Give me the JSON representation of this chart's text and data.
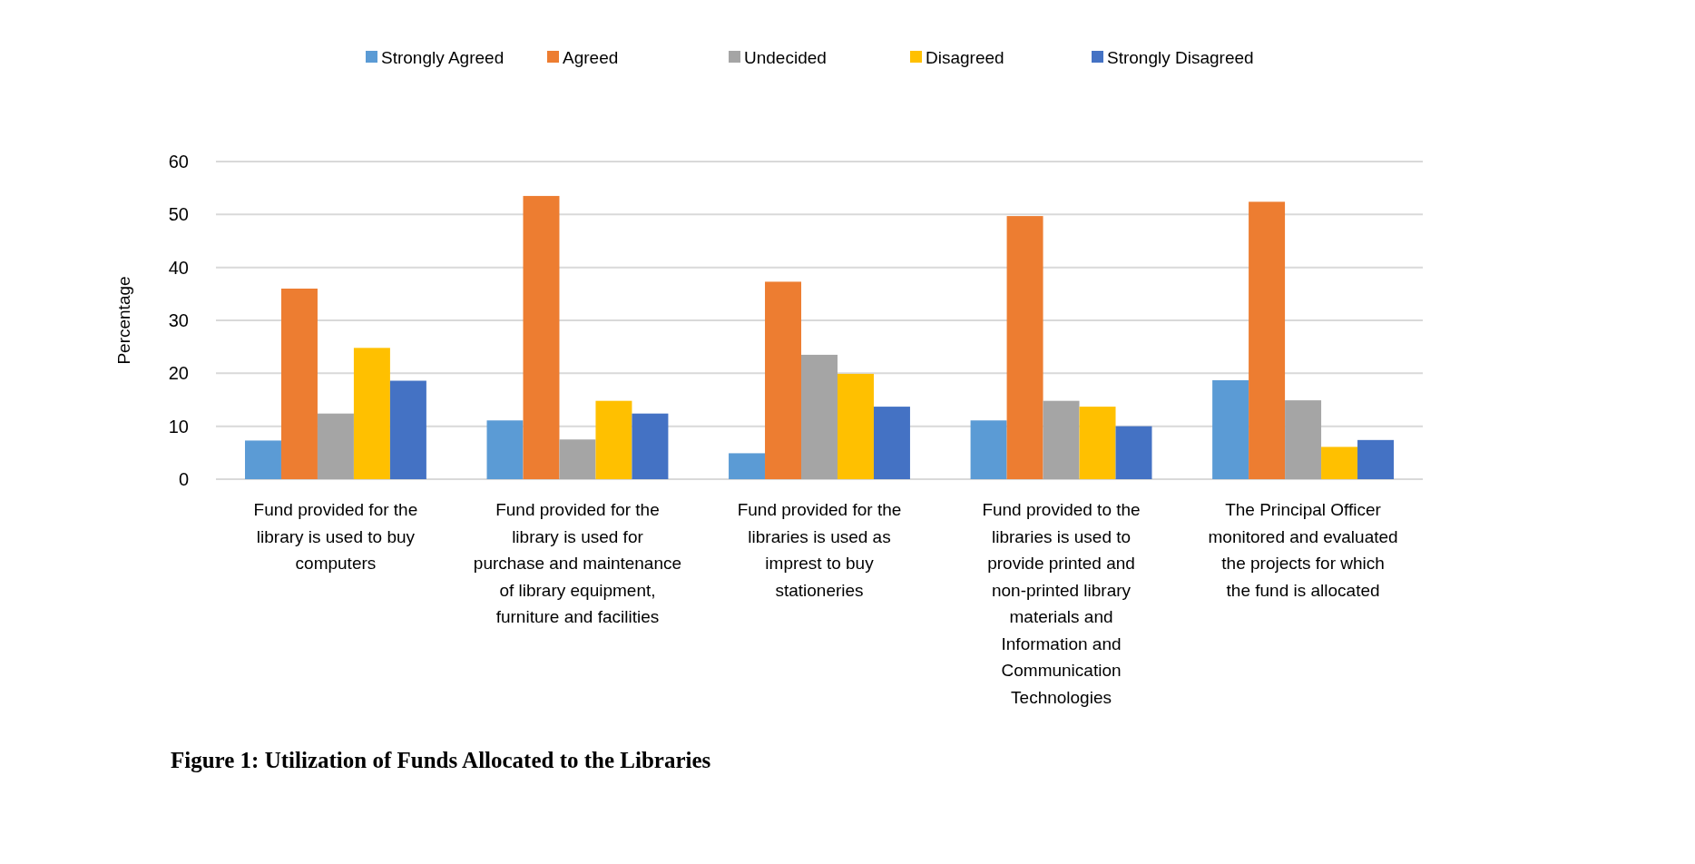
{
  "chart_data": {
    "type": "bar",
    "title": "Figure 1: Utilization of Funds Allocated to the Libraries",
    "ylabel": "Percentage",
    "categories": [
      "Fund provided for the library is used to buy computers",
      "Fund provided for the library is used for purchase and maintenance of library equipment, furniture and facilities",
      "Fund provided for the libraries is used as imprest to buy stationeries",
      "Fund provided to the libraries is used to provide printed and non-printed library materials and Information and Communication Technologies",
      "The Principal Officer monitored and evaluated the projects for which the fund is allocated"
    ],
    "series": [
      {
        "name": "Strongly Agreed",
        "color": "#5b9bd5",
        "values": [
          7.3,
          11.1,
          4.9,
          11.1,
          18.7
        ]
      },
      {
        "name": "Agreed",
        "color": "#ed7d31",
        "values": [
          36,
          53.5,
          37.3,
          49.7,
          52.4
        ]
      },
      {
        "name": "Undecided",
        "color": "#a5a5a5",
        "values": [
          12.4,
          7.5,
          23.5,
          14.8,
          14.9
        ]
      },
      {
        "name": "Disagreed",
        "color": "#ffc000",
        "values": [
          24.8,
          14.8,
          19.9,
          13.7,
          6.1
        ]
      },
      {
        "name": "Strongly Disagreed",
        "color": "#4472c4",
        "values": [
          18.6,
          12.4,
          13.7,
          10,
          7.4
        ]
      }
    ],
    "ylim": [
      0,
      60
    ],
    "yticks": [
      0,
      10,
      20,
      30,
      40,
      50,
      60
    ],
    "grid": "y",
    "legend": "top"
  }
}
